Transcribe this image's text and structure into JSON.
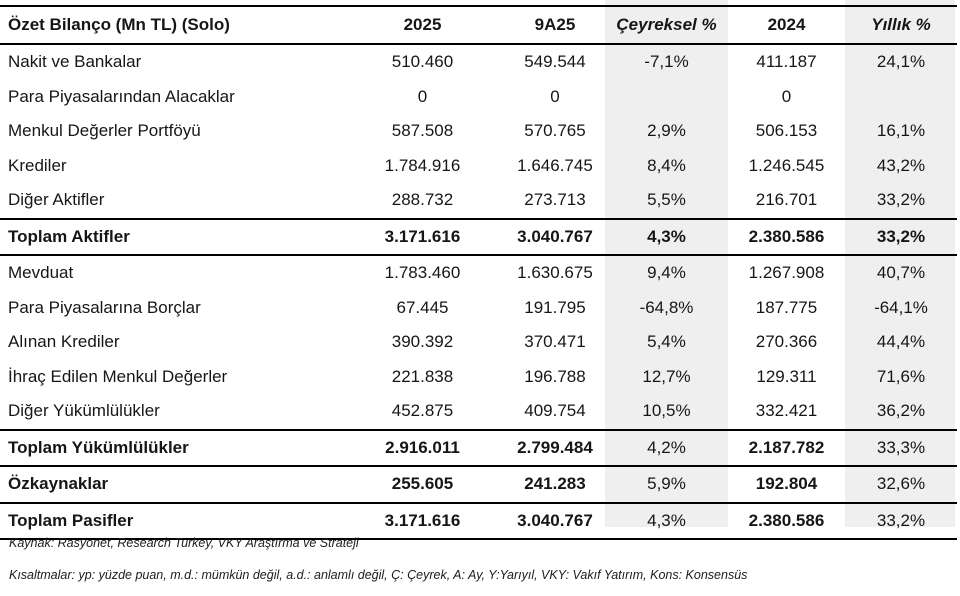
{
  "page": {
    "stripe_color": "#efefef",
    "text_color": "#161616",
    "rule_color": "#000000",
    "background": "#ffffff"
  },
  "table": {
    "header": {
      "title": "Özet Bilanço (Mn TL) (Solo)",
      "col_2025": "2025",
      "col_9a25": "9A25",
      "col_qoq": "Çeyreksel %",
      "col_2024": "2024",
      "col_yoy": "Yıllık %"
    },
    "rows": [
      {
        "label": "Nakit ve Bankalar",
        "y2025": "510.460",
        "q9a25": "549.544",
        "qoq": "-7,1%",
        "y2024": "411.187",
        "yoy": "24,1%",
        "total": false,
        "pct_bold": false
      },
      {
        "label": "Para Piyasalarından Alacaklar",
        "y2025": "0",
        "q9a25": "0",
        "qoq": "",
        "y2024": "0",
        "yoy": "",
        "total": false,
        "pct_bold": false
      },
      {
        "label": "Menkul Değerler Portföyü",
        "y2025": "587.508",
        "q9a25": "570.765",
        "qoq": "2,9%",
        "y2024": "506.153",
        "yoy": "16,1%",
        "total": false,
        "pct_bold": false
      },
      {
        "label": "Krediler",
        "y2025": "1.784.916",
        "q9a25": "1.646.745",
        "qoq": "8,4%",
        "y2024": "1.246.545",
        "yoy": "43,2%",
        "total": false,
        "pct_bold": false
      },
      {
        "label": "Diğer Aktifler",
        "y2025": "288.732",
        "q9a25": "273.713",
        "qoq": "5,5%",
        "y2024": "216.701",
        "yoy": "33,2%",
        "total": false,
        "pct_bold": false
      },
      {
        "label": "Toplam Aktifler",
        "y2025": "3.171.616",
        "q9a25": "3.040.767",
        "qoq": "4,3%",
        "y2024": "2.380.586",
        "yoy": "33,2%",
        "total": true,
        "pct_bold": true
      },
      {
        "label": "Mevduat",
        "y2025": "1.783.460",
        "q9a25": "1.630.675",
        "qoq": "9,4%",
        "y2024": "1.267.908",
        "yoy": "40,7%",
        "total": false,
        "pct_bold": false
      },
      {
        "label": "Para Piyasalarına Borçlar",
        "y2025": "67.445",
        "q9a25": "191.795",
        "qoq": "-64,8%",
        "y2024": "187.775",
        "yoy": "-64,1%",
        "total": false,
        "pct_bold": false
      },
      {
        "label": "Alınan Krediler",
        "y2025": "390.392",
        "q9a25": "370.471",
        "qoq": "5,4%",
        "y2024": "270.366",
        "yoy": "44,4%",
        "total": false,
        "pct_bold": false
      },
      {
        "label": "İhraç Edilen Menkul Değerler",
        "y2025": "221.838",
        "q9a25": "196.788",
        "qoq": "12,7%",
        "y2024": "129.311",
        "yoy": "71,6%",
        "total": false,
        "pct_bold": false
      },
      {
        "label": "Diğer Yükümlülükler",
        "y2025": "452.875",
        "q9a25": "409.754",
        "qoq": "10,5%",
        "y2024": "332.421",
        "yoy": "36,2%",
        "total": false,
        "pct_bold": false
      },
      {
        "label": "Toplam Yükümlülükler",
        "y2025": "2.916.011",
        "q9a25": "2.799.484",
        "qoq": "4,2%",
        "y2024": "2.187.782",
        "yoy": "33,3%",
        "total": true,
        "pct_bold": false
      },
      {
        "label": "Özkaynaklar",
        "y2025": "255.605",
        "q9a25": "241.283",
        "qoq": "5,9%",
        "y2024": "192.804",
        "yoy": "32,6%",
        "total": true,
        "pct_bold": false
      },
      {
        "label": "Toplam Pasifler",
        "y2025": "3.171.616",
        "q9a25": "3.040.767",
        "qoq": "4,3%",
        "y2024": "2.380.586",
        "yoy": "33,2%",
        "total": true,
        "pct_bold": false
      }
    ]
  },
  "footnotes": {
    "source": "Kaynak: Rasyonet, Research Turkey, VKY Araştırma ve Strateji",
    "abbreviations": "Kısaltmalar: yp: yüzde puan, m.d.: mümkün değil, a.d.: anlamlı değil, Ç: Çeyrek, A: Ay, Y:Yarıyıl, VKY: Vakıf Yatırım, Kons: Konsensüs"
  }
}
